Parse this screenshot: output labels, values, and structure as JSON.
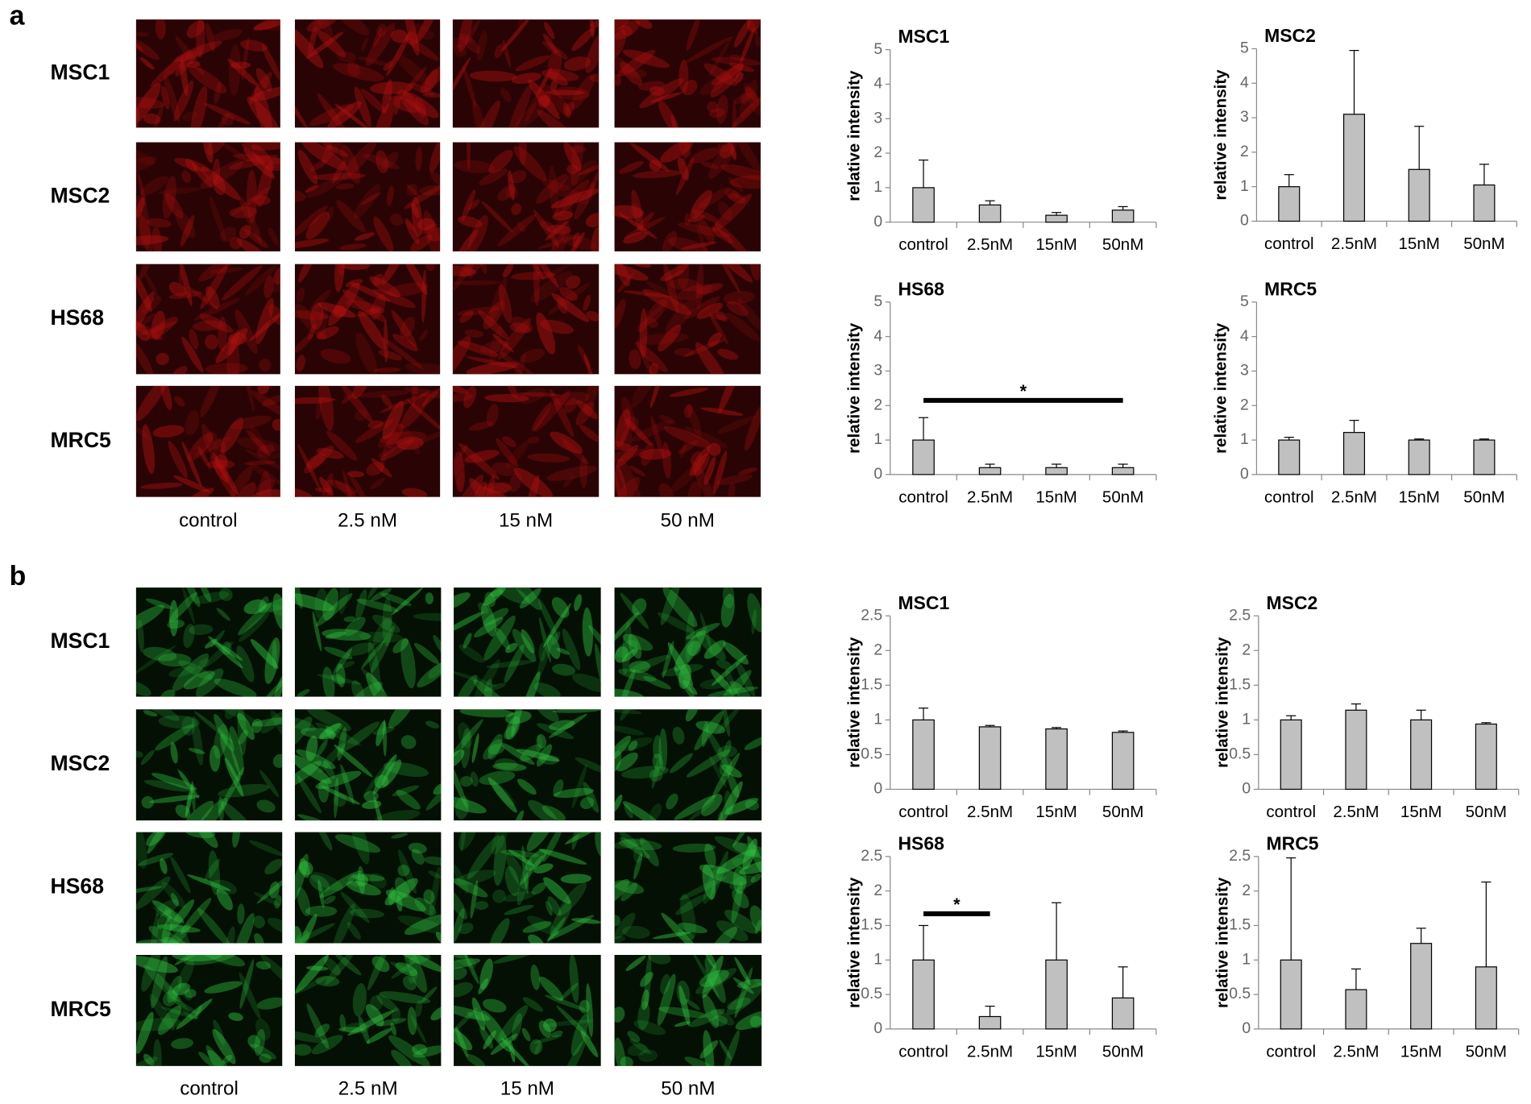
{
  "panels": [
    {
      "label": "a",
      "color": "#b01010",
      "rows": [
        "MSC1",
        "MSC2",
        "HS68",
        "MRC5"
      ],
      "columns": [
        "control",
        "2.5 nM",
        "15 nM",
        "50 nM"
      ]
    },
    {
      "label": "b",
      "color": "#30c040",
      "rows": [
        "MSC1",
        "MSC2",
        "HS68",
        "MRC5"
      ],
      "columns": [
        "control",
        "2.5 nM",
        "15 nM",
        "50 nM"
      ]
    }
  ],
  "chart_data": [
    {
      "type": "bar",
      "title": "MSC1",
      "ylabel": "relative intensity",
      "categories": [
        "control",
        "2.5nM",
        "15nM",
        "50nM"
      ],
      "values": [
        1,
        0.5,
        0.2,
        0.35
      ],
      "errors": [
        0.8,
        0.12,
        0.08,
        0.1
      ],
      "color": "#c0c0c0",
      "ylim": [
        0,
        5
      ],
      "yticks": [
        0,
        1,
        2,
        3,
        4,
        5
      ]
    },
    {
      "type": "bar",
      "title": "MSC2",
      "ylabel": "relative intensity",
      "categories": [
        "control",
        "2.5nM",
        "15nM",
        "50nM"
      ],
      "values": [
        1,
        3.1,
        1.5,
        1.05
      ],
      "errors": [
        0.35,
        1.85,
        1.25,
        0.6
      ],
      "color": "#c0c0c0",
      "ylim": [
        0,
        5
      ],
      "yticks": [
        0,
        1,
        2,
        3,
        4,
        5
      ]
    },
    {
      "type": "bar",
      "title": "HS68",
      "ylabel": "relative intensity",
      "categories": [
        "control",
        "2.5nM",
        "15nM",
        "50nM"
      ],
      "values": [
        1,
        0.2,
        0.2,
        0.2
      ],
      "errors": [
        0.65,
        0.1,
        0.1,
        0.1
      ],
      "color": "#c0c0c0",
      "ylim": [
        0,
        5
      ],
      "yticks": [
        0,
        1,
        2,
        3,
        4,
        5
      ],
      "significance": {
        "label": "*",
        "from": "control",
        "to": "50nM",
        "y": 2.15
      }
    },
    {
      "type": "bar",
      "title": "MRC5",
      "ylabel": "relative intensity",
      "categories": [
        "control",
        "2.5nM",
        "15nM",
        "50nM"
      ],
      "values": [
        1,
        1.22,
        1,
        1
      ],
      "errors": [
        0.08,
        0.35,
        0.03,
        0.03
      ],
      "color": "#c0c0c0",
      "ylim": [
        0,
        5
      ],
      "yticks": [
        0,
        1,
        2,
        3,
        4,
        5
      ]
    },
    {
      "type": "bar",
      "title": "MSC1",
      "ylabel": "relative intensity",
      "categories": [
        "control",
        "2.5nM",
        "15nM",
        "50nM"
      ],
      "values": [
        1,
        0.9,
        0.87,
        0.82
      ],
      "errors": [
        0.17,
        0.02,
        0.02,
        0.02
      ],
      "color": "#c0c0c0",
      "ylim": [
        0,
        2.5
      ],
      "yticks": [
        0,
        0.5,
        1,
        1.5,
        2,
        2.5
      ]
    },
    {
      "type": "bar",
      "title": "MSC2",
      "ylabel": "relative intensity",
      "categories": [
        "control",
        "2.5nM",
        "15nM",
        "50nM"
      ],
      "values": [
        1,
        1.14,
        1,
        0.94
      ],
      "errors": [
        0.06,
        0.09,
        0.14,
        0.02
      ],
      "color": "#c0c0c0",
      "ylim": [
        0,
        2.5
      ],
      "yticks": [
        0,
        0.5,
        1,
        1.5,
        2,
        2.5
      ]
    },
    {
      "type": "bar",
      "title": "HS68",
      "ylabel": "relative intensity",
      "categories": [
        "control",
        "2.5nM",
        "15nM",
        "50nM"
      ],
      "values": [
        1,
        0.18,
        1,
        0.45
      ],
      "errors": [
        0.5,
        0.15,
        0.83,
        0.45
      ],
      "color": "#c0c0c0",
      "ylim": [
        0,
        2.5
      ],
      "yticks": [
        0,
        0.5,
        1,
        1.5,
        2,
        2.5
      ],
      "significance": {
        "label": "*",
        "from": "control",
        "to": "2.5nM",
        "y": 1.67
      }
    },
    {
      "type": "bar",
      "title": "MRC5",
      "ylabel": "relative intensity",
      "categories": [
        "control",
        "2.5nM",
        "15nM",
        "50nM"
      ],
      "values": [
        1,
        0.57,
        1.24,
        0.9
      ],
      "errors": [
        1.48,
        0.3,
        0.22,
        1.23
      ],
      "color": "#c0c0c0",
      "ylim": [
        0,
        2.5
      ],
      "yticks": [
        0,
        0.5,
        1,
        1.5,
        2,
        2.5
      ]
    }
  ]
}
